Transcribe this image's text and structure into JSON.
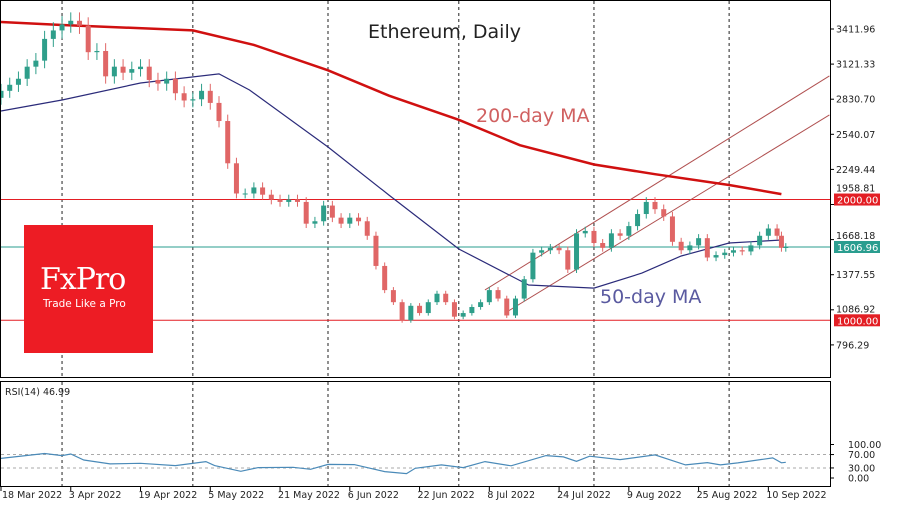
{
  "chart_data": {
    "type": "candlestick",
    "title": "Ethereum, Daily",
    "price_axis": {
      "ticks": [
        "3411.96",
        "3121.33",
        "2830.70",
        "2540.07",
        "2249.44",
        "1958.81",
        "1668.18",
        "1377.55",
        "1086.92",
        "796.29"
      ],
      "range": [
        520,
        3700
      ]
    },
    "date_ticks": [
      "18 Mar 2022",
      "3 Apr 2022",
      "19 Apr 2022",
      "5 May 2022",
      "21 May 2022",
      "6 Jun 2022",
      "22 Jun 2022",
      "8 Jul 2022",
      "24 Jul 2022",
      "9 Aug 2022",
      "25 Aug 2022",
      "10 Sep 2022"
    ],
    "date_tick_values": [
      "2022-03-18",
      "2022-04-03",
      "2022-04-19",
      "2022-05-05",
      "2022-05-21",
      "2022-06-06",
      "2022-06-22",
      "2022-07-08",
      "2022-07-24",
      "2022-08-09",
      "2022-08-25",
      "2022-09-10"
    ],
    "month_separators": [
      "2022-04-01",
      "2022-05-01",
      "2022-06-01",
      "2022-07-01",
      "2022-08-01",
      "2022-09-01"
    ],
    "closes": [
      [
        "2022-03-18",
        2900
      ],
      [
        "2022-03-20",
        2950
      ],
      [
        "2022-03-22",
        3000
      ],
      [
        "2022-03-24",
        3100
      ],
      [
        "2022-03-26",
        3150
      ],
      [
        "2022-03-28",
        3330
      ],
      [
        "2022-03-30",
        3400
      ],
      [
        "2022-04-01",
        3450
      ],
      [
        "2022-04-03",
        3480
      ],
      [
        "2022-04-05",
        3440
      ],
      [
        "2022-04-07",
        3220
      ],
      [
        "2022-04-09",
        3230
      ],
      [
        "2022-04-11",
        3020
      ],
      [
        "2022-04-13",
        3100
      ],
      [
        "2022-04-15",
        3050
      ],
      [
        "2022-04-17",
        3080
      ],
      [
        "2022-04-19",
        3100
      ],
      [
        "2022-04-21",
        2990
      ],
      [
        "2022-04-23",
        2960
      ],
      [
        "2022-04-25",
        3000
      ],
      [
        "2022-04-27",
        2880
      ],
      [
        "2022-04-29",
        2820
      ],
      [
        "2022-05-01",
        2830
      ],
      [
        "2022-05-03",
        2900
      ],
      [
        "2022-05-05",
        2800
      ],
      [
        "2022-05-07",
        2650
      ],
      [
        "2022-05-09",
        2300
      ],
      [
        "2022-05-11",
        2050
      ],
      [
        "2022-05-13",
        2050
      ],
      [
        "2022-05-15",
        2100
      ],
      [
        "2022-05-17",
        2040
      ],
      [
        "2022-05-19",
        2000
      ],
      [
        "2022-05-21",
        1980
      ],
      [
        "2022-05-23",
        2000
      ],
      [
        "2022-05-25",
        1980
      ],
      [
        "2022-05-27",
        1800
      ],
      [
        "2022-05-29",
        1820
      ],
      [
        "2022-05-31",
        1950
      ],
      [
        "2022-06-02",
        1850
      ],
      [
        "2022-06-04",
        1800
      ],
      [
        "2022-06-06",
        1850
      ],
      [
        "2022-06-08",
        1820
      ],
      [
        "2022-06-10",
        1700
      ],
      [
        "2022-06-12",
        1450
      ],
      [
        "2022-06-14",
        1250
      ],
      [
        "2022-06-16",
        1150
      ],
      [
        "2022-06-18",
        1000
      ],
      [
        "2022-06-20",
        1120
      ],
      [
        "2022-06-22",
        1060
      ],
      [
        "2022-06-24",
        1150
      ],
      [
        "2022-06-26",
        1220
      ],
      [
        "2022-06-28",
        1150
      ],
      [
        "2022-06-30",
        1030
      ],
      [
        "2022-07-02",
        1060
      ],
      [
        "2022-07-04",
        1110
      ],
      [
        "2022-07-06",
        1150
      ],
      [
        "2022-07-08",
        1250
      ],
      [
        "2022-07-10",
        1180
      ],
      [
        "2022-07-12",
        1040
      ],
      [
        "2022-07-14",
        1180
      ],
      [
        "2022-07-16",
        1340
      ],
      [
        "2022-07-18",
        1560
      ],
      [
        "2022-07-20",
        1580
      ],
      [
        "2022-07-22",
        1600
      ],
      [
        "2022-07-24",
        1580
      ],
      [
        "2022-07-26",
        1420
      ],
      [
        "2022-07-28",
        1720
      ],
      [
        "2022-07-30",
        1740
      ],
      [
        "2022-08-01",
        1640
      ],
      [
        "2022-08-03",
        1600
      ],
      [
        "2022-08-05",
        1720
      ],
      [
        "2022-08-07",
        1700
      ],
      [
        "2022-08-09",
        1780
      ],
      [
        "2022-08-11",
        1880
      ],
      [
        "2022-08-13",
        1980
      ],
      [
        "2022-08-15",
        1920
      ],
      [
        "2022-08-17",
        1860
      ],
      [
        "2022-08-19",
        1650
      ],
      [
        "2022-08-21",
        1580
      ],
      [
        "2022-08-23",
        1620
      ],
      [
        "2022-08-25",
        1680
      ],
      [
        "2022-08-27",
        1520
      ],
      [
        "2022-08-29",
        1540
      ],
      [
        "2022-08-31",
        1560
      ],
      [
        "2022-09-02",
        1580
      ],
      [
        "2022-09-04",
        1570
      ],
      [
        "2022-09-06",
        1620
      ],
      [
        "2022-09-08",
        1700
      ],
      [
        "2022-09-10",
        1760
      ],
      [
        "2022-09-12",
        1700
      ],
      [
        "2022-09-13",
        1600
      ],
      [
        "2022-09-14",
        1606.96
      ]
    ],
    "ma200": {
      "label": "200-day MA",
      "color": "#d01010",
      "points": [
        [
          "2022-03-18",
          3470
        ],
        [
          "2022-04-01",
          3445
        ],
        [
          "2022-05-01",
          3400
        ],
        [
          "2022-05-15",
          3280
        ],
        [
          "2022-06-01",
          3070
        ],
        [
          "2022-06-15",
          2860
        ],
        [
          "2022-07-01",
          2660
        ],
        [
          "2022-07-15",
          2450
        ],
        [
          "2022-08-01",
          2290
        ],
        [
          "2022-08-15",
          2210
        ],
        [
          "2022-09-01",
          2120
        ],
        [
          "2022-09-13",
          2045
        ]
      ]
    },
    "ma50": {
      "label": "50-day MA",
      "color": "#2b2b7a",
      "points": [
        [
          "2022-03-18",
          2733
        ],
        [
          "2022-04-01",
          2824
        ],
        [
          "2022-04-19",
          2965
        ],
        [
          "2022-05-07",
          3040
        ],
        [
          "2022-05-14",
          2907
        ],
        [
          "2022-06-01",
          2435
        ],
        [
          "2022-06-15",
          2037
        ],
        [
          "2022-07-01",
          1590
        ],
        [
          "2022-07-17",
          1292
        ],
        [
          "2022-08-01",
          1267
        ],
        [
          "2022-08-12",
          1391
        ],
        [
          "2022-08-21",
          1532
        ],
        [
          "2022-09-01",
          1640
        ],
        [
          "2022-09-13",
          1665
        ]
      ]
    },
    "channel": [
      {
        "from": [
          "2022-07-07",
          1251
        ],
        "to": [
          "2022-09-24",
          3023
        ]
      },
      {
        "from": [
          "2022-07-12",
          1069
        ],
        "to": [
          "2022-09-24",
          2700
        ]
      }
    ],
    "levels": [
      {
        "value": 2000,
        "label": "2000.00",
        "color": "#e31e24"
      },
      {
        "value": 1000,
        "label": "1000.00",
        "color": "#e31e24"
      },
      {
        "value": 1606.96,
        "label": "1606.96",
        "color": "#2a9d8f"
      }
    ],
    "colors": {
      "up": "#2e9e8a",
      "down": "#e06666",
      "channel": "#b05050",
      "ma200_label": "#d06060",
      "ma50_label": "#5a5aa0"
    },
    "rsi": {
      "label": "RSI(14) 46.99",
      "ticks": [
        "100.00",
        "70.00",
        "30.00",
        "0.00"
      ],
      "levels": [
        70,
        30
      ],
      "points": [
        [
          "2022-03-18",
          58.5
        ],
        [
          "2022-03-28",
          73
        ],
        [
          "2022-04-01",
          67
        ],
        [
          "2022-04-03",
          71.6
        ],
        [
          "2022-04-06",
          53.6
        ],
        [
          "2022-04-12",
          42
        ],
        [
          "2022-04-19",
          44
        ],
        [
          "2022-04-27",
          37
        ],
        [
          "2022-05-04",
          49
        ],
        [
          "2022-05-06",
          37
        ],
        [
          "2022-05-12",
          20
        ],
        [
          "2022-05-16",
          31
        ],
        [
          "2022-05-24",
          32
        ],
        [
          "2022-05-28",
          26
        ],
        [
          "2022-06-01",
          40.5
        ],
        [
          "2022-06-07",
          40
        ],
        [
          "2022-06-14",
          19
        ],
        [
          "2022-06-19",
          13
        ],
        [
          "2022-06-21",
          29
        ],
        [
          "2022-06-27",
          39
        ],
        [
          "2022-07-02",
          31
        ],
        [
          "2022-07-07",
          49
        ],
        [
          "2022-07-13",
          36.5
        ],
        [
          "2022-07-21",
          67
        ],
        [
          "2022-07-25",
          63
        ],
        [
          "2022-07-28",
          50
        ],
        [
          "2022-07-31",
          65
        ],
        [
          "2022-08-07",
          55
        ],
        [
          "2022-08-15",
          69
        ],
        [
          "2022-08-22",
          39
        ],
        [
          "2022-08-27",
          46
        ],
        [
          "2022-08-30",
          39
        ],
        [
          "2022-09-03",
          45
        ],
        [
          "2022-09-11",
          60
        ],
        [
          "2022-09-13",
          45.5
        ],
        [
          "2022-09-14",
          46.99
        ]
      ],
      "color": "#4a8ab8"
    }
  },
  "logo": {
    "brand": "FxPro",
    "tagline": "Trade Like a Pro",
    "color": "#ed1c24"
  }
}
